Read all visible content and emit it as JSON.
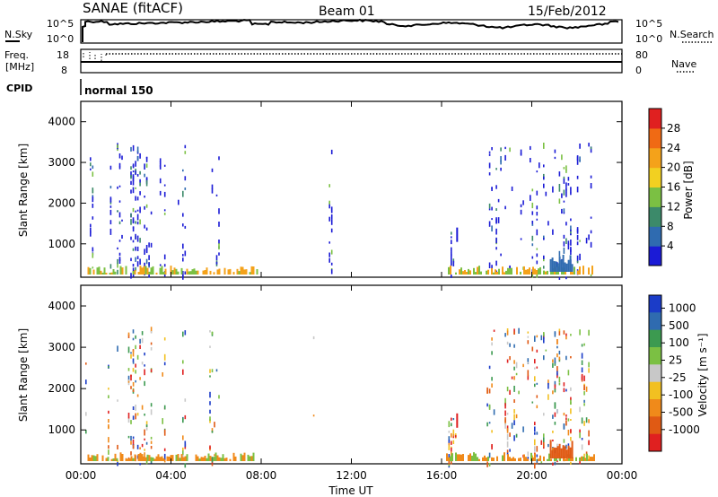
{
  "header": {
    "station": "SANAE (fitACF)",
    "beam": "Beam 01",
    "date": "15/Feb/2012"
  },
  "sky": {
    "label": "N.Sky",
    "right_label": "N.Search",
    "tick_top": "10^5",
    "tick_bottom": "10^0"
  },
  "freq": {
    "label_line1": "Freq.",
    "label_line2": "[MHz]",
    "tick_top": "18",
    "tick_bottom": "8",
    "nave_label": "Nave",
    "nave_top": "80",
    "nave_bottom": "0"
  },
  "cpid": {
    "label": "CPID",
    "value": "normal 150"
  },
  "colors": {
    "frame": "#000000",
    "scatter_blue": "#1f3fbf"
  },
  "chart_data": [
    {
      "type": "heatmap",
      "ylabel": "Slant Range [km]",
      "yticks": [
        "1000",
        "2000",
        "3000",
        "4000"
      ],
      "ylim": [
        180,
        4500
      ],
      "colorbar": {
        "label": "Power [dB]",
        "ticks": [
          "4",
          "8",
          "12",
          "16",
          "20",
          "24",
          "28"
        ],
        "colors": [
          "#1b1bd6",
          "#2f6bb0",
          "#3c8a6a",
          "#7bc043",
          "#f2d021",
          "#f4a21a",
          "#f06a14",
          "#e02020"
        ]
      }
    },
    {
      "type": "heatmap",
      "ylabel": "Slant Range [km]",
      "yticks": [
        "1000",
        "2000",
        "3000",
        "4000"
      ],
      "ylim": [
        180,
        4500
      ],
      "xlabel": "Time UT",
      "xticks": [
        "00:00",
        "04:00",
        "08:00",
        "12:00",
        "16:00",
        "20:00",
        "00:00"
      ],
      "colorbar": {
        "label": "Velocity [m s⁻¹]",
        "ticks": [
          "1000",
          "500",
          "100",
          "25",
          "-25",
          "-100",
          "-500",
          "-1000"
        ],
        "colors": [
          "#1b3cc8",
          "#2f6bb0",
          "#3c9a50",
          "#7bc043",
          "#c8c8c8",
          "#f2c021",
          "#f08a1a",
          "#e05a14",
          "#e02020"
        ]
      }
    }
  ]
}
